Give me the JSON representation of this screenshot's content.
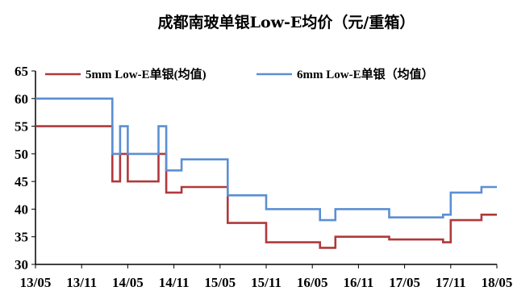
{
  "chart_data": {
    "type": "line",
    "title": "成都南玻单银Low-E均价（元/重箱）",
    "xlabel": "",
    "ylabel": "",
    "ylim": [
      30,
      65
    ],
    "yticks": [
      30,
      35,
      40,
      45,
      50,
      55,
      60,
      65
    ],
    "xlim": [
      "2013-05",
      "2018-05"
    ],
    "xticks": [
      "13/05",
      "13/11",
      "14/05",
      "14/11",
      "15/05",
      "15/11",
      "16/05",
      "16/11",
      "17/05",
      "17/11",
      "18/05"
    ],
    "legend": "top",
    "grid": false,
    "series": [
      {
        "name": "5mm Low-E单银(均值)",
        "color": "#B0393B",
        "step": true,
        "points": [
          [
            "2013-05",
            55
          ],
          [
            "2014-03",
            55
          ],
          [
            "2014-03",
            45
          ],
          [
            "2014-04",
            45
          ],
          [
            "2014-04",
            50
          ],
          [
            "2014-05",
            50
          ],
          [
            "2014-05",
            45
          ],
          [
            "2014-09",
            45
          ],
          [
            "2014-09",
            50
          ],
          [
            "2014-10",
            50
          ],
          [
            "2014-10",
            43
          ],
          [
            "2014-12",
            43
          ],
          [
            "2014-12",
            44
          ],
          [
            "2015-06",
            44
          ],
          [
            "2015-06",
            37.5
          ],
          [
            "2015-11",
            37.5
          ],
          [
            "2015-11",
            34
          ],
          [
            "2016-06",
            34
          ],
          [
            "2016-06",
            33
          ],
          [
            "2016-08",
            33
          ],
          [
            "2016-08",
            35
          ],
          [
            "2017-03",
            35
          ],
          [
            "2017-03",
            34.5
          ],
          [
            "2017-10",
            34.5
          ],
          [
            "2017-10",
            34
          ],
          [
            "2017-11",
            34
          ],
          [
            "2017-11",
            38
          ],
          [
            "2018-03",
            38
          ],
          [
            "2018-03",
            39
          ],
          [
            "2018-05",
            39
          ]
        ]
      },
      {
        "name": "6mm Low-E单银（均值）",
        "color": "#5B8FD4",
        "step": true,
        "points": [
          [
            "2013-05",
            60
          ],
          [
            "2014-03",
            60
          ],
          [
            "2014-03",
            50
          ],
          [
            "2014-04",
            50
          ],
          [
            "2014-04",
            55
          ],
          [
            "2014-05",
            55
          ],
          [
            "2014-05",
            50
          ],
          [
            "2014-09",
            50
          ],
          [
            "2014-09",
            55
          ],
          [
            "2014-10",
            55
          ],
          [
            "2014-10",
            47
          ],
          [
            "2014-12",
            47
          ],
          [
            "2014-12",
            49
          ],
          [
            "2015-06",
            49
          ],
          [
            "2015-06",
            42.5
          ],
          [
            "2015-11",
            42.5
          ],
          [
            "2015-11",
            40
          ],
          [
            "2016-06",
            40
          ],
          [
            "2016-06",
            38
          ],
          [
            "2016-08",
            38
          ],
          [
            "2016-08",
            40
          ],
          [
            "2017-03",
            40
          ],
          [
            "2017-03",
            38.5
          ],
          [
            "2017-10",
            38.5
          ],
          [
            "2017-10",
            39
          ],
          [
            "2017-11",
            39
          ],
          [
            "2017-11",
            43
          ],
          [
            "2018-03",
            43
          ],
          [
            "2018-03",
            44
          ],
          [
            "2018-05",
            44
          ]
        ]
      }
    ]
  }
}
